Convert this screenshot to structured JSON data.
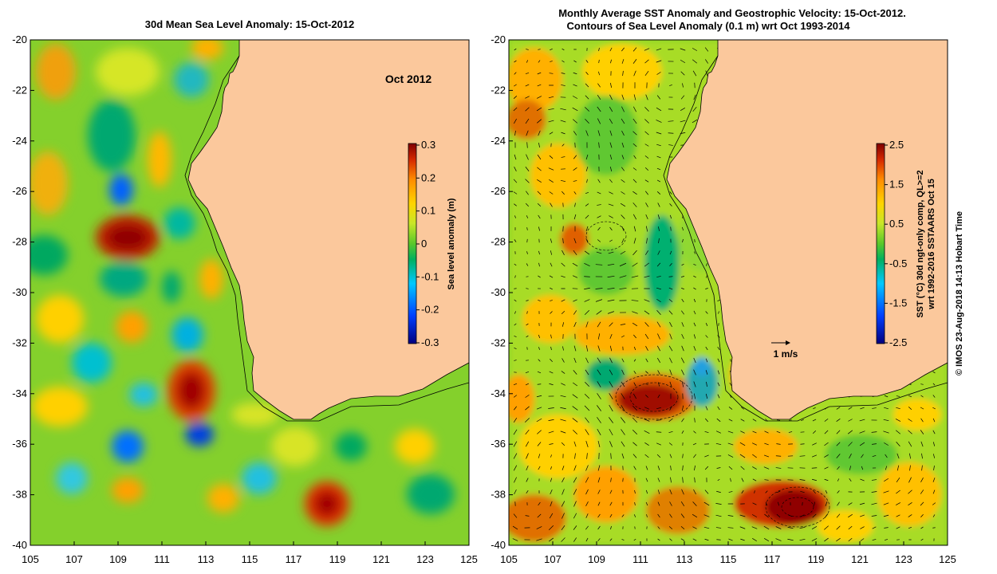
{
  "left_panel": {
    "title": "30d Mean Sea Level Anomaly: 15-Oct-2012",
    "date_label": "Oct 2012",
    "colorbar_label": "Sea level anomaly (m)",
    "colorbar_ticks": [
      "0.3",
      "0.2",
      "0.1",
      "0",
      "-0.1",
      "-0.2",
      "-0.3"
    ],
    "lat_ticks": [
      "-20",
      "-22",
      "-24",
      "-26",
      "-28",
      "-30",
      "-32",
      "-34",
      "-36",
      "-38",
      "-40"
    ],
    "lon_ticks": [
      "105",
      "107",
      "109",
      "111",
      "113",
      "115",
      "117",
      "119",
      "121",
      "123",
      "125"
    ]
  },
  "right_panel": {
    "title_line1": "Monthly Average SST Anomaly  and Geostrophic Velocity: 15-Oct-2012.",
    "title_line2": "Contours of Sea Level Anomaly (0.1 m) wrt Oct 1993-2014",
    "colorbar_label_line1": "SST (°C) 30d ngt-only comp, QL>=2",
    "colorbar_label_line2": "wrt 1992-2016 SSTAARS Oct 15",
    "colorbar_ticks": [
      "2.5",
      "1.5",
      "0.5",
      "-0.5",
      "-1.5",
      "-2.5"
    ],
    "velocity_scale_label": "1 m/s",
    "lat_ticks": [
      "-20",
      "-22",
      "-24",
      "-26",
      "-28",
      "-30",
      "-32",
      "-34",
      "-36",
      "-38",
      "-40"
    ],
    "lon_ticks": [
      "105",
      "107",
      "109",
      "111",
      "113",
      "115",
      "117",
      "119",
      "121",
      "123",
      "125"
    ]
  },
  "credit": "© IMOS 23-Aug-2018 14:13 Hobart Time",
  "colors": {
    "land": "#fbc89c",
    "background_green": "#7ed22a"
  }
}
